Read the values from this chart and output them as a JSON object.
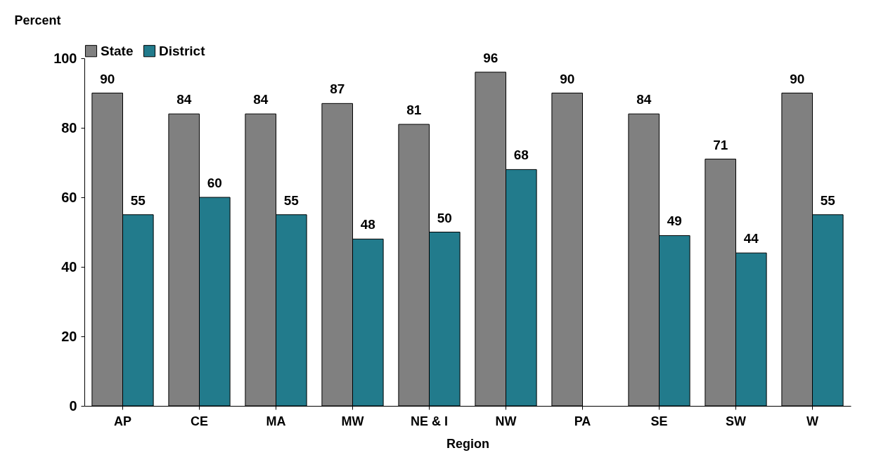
{
  "chart_data": {
    "type": "bar",
    "xlabel": "Region",
    "ylabel": "Percent",
    "categories": [
      "AP",
      "CE",
      "MA",
      "MW",
      "NE & I",
      "NW",
      "PA",
      "SE",
      "SW",
      "W"
    ],
    "series": [
      {
        "name": "State",
        "color": "#808080",
        "values": [
          90,
          84,
          84,
          87,
          81,
          96,
          90,
          84,
          71,
          90
        ]
      },
      {
        "name": "District",
        "color": "#227b8c",
        "values": [
          55,
          60,
          55,
          48,
          50,
          68,
          null,
          49,
          44,
          55
        ]
      }
    ],
    "ylim": [
      0,
      100
    ],
    "yticks": [
      0,
      20,
      40,
      60,
      80,
      100
    ],
    "grid": false,
    "legend": "top",
    "data_labels": true
  }
}
